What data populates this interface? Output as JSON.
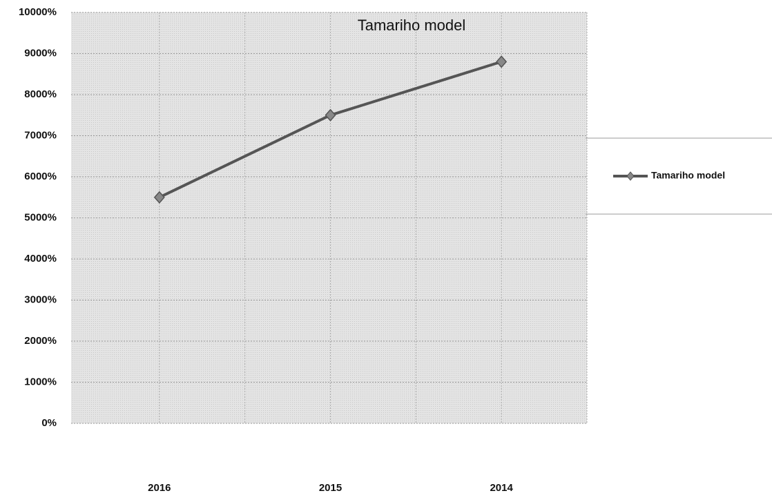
{
  "chart_data": {
    "type": "line",
    "title": "Tamariho model",
    "categories": [
      "2016",
      "2015",
      "2014"
    ],
    "series": [
      {
        "name": "Tamariho model",
        "color": "#555555",
        "values": [
          5500,
          7500,
          8800
        ]
      }
    ],
    "ylim": [
      0,
      10000
    ],
    "yticks": [
      {
        "value": 0,
        "label": "0%"
      },
      {
        "value": 1000,
        "label": "1000%"
      },
      {
        "value": 2000,
        "label": "2000%"
      },
      {
        "value": 3000,
        "label": "3000%"
      },
      {
        "value": 4000,
        "label": "4000%"
      },
      {
        "value": 5000,
        "label": "5000%"
      },
      {
        "value": 6000,
        "label": "6000%"
      },
      {
        "value": 7000,
        "label": "7000%"
      },
      {
        "value": 8000,
        "label": "8000%"
      },
      {
        "value": 9000,
        "label": "9000%"
      },
      {
        "value": 10000,
        "label": "10000%"
      }
    ],
    "grid": true,
    "legend": "right"
  }
}
